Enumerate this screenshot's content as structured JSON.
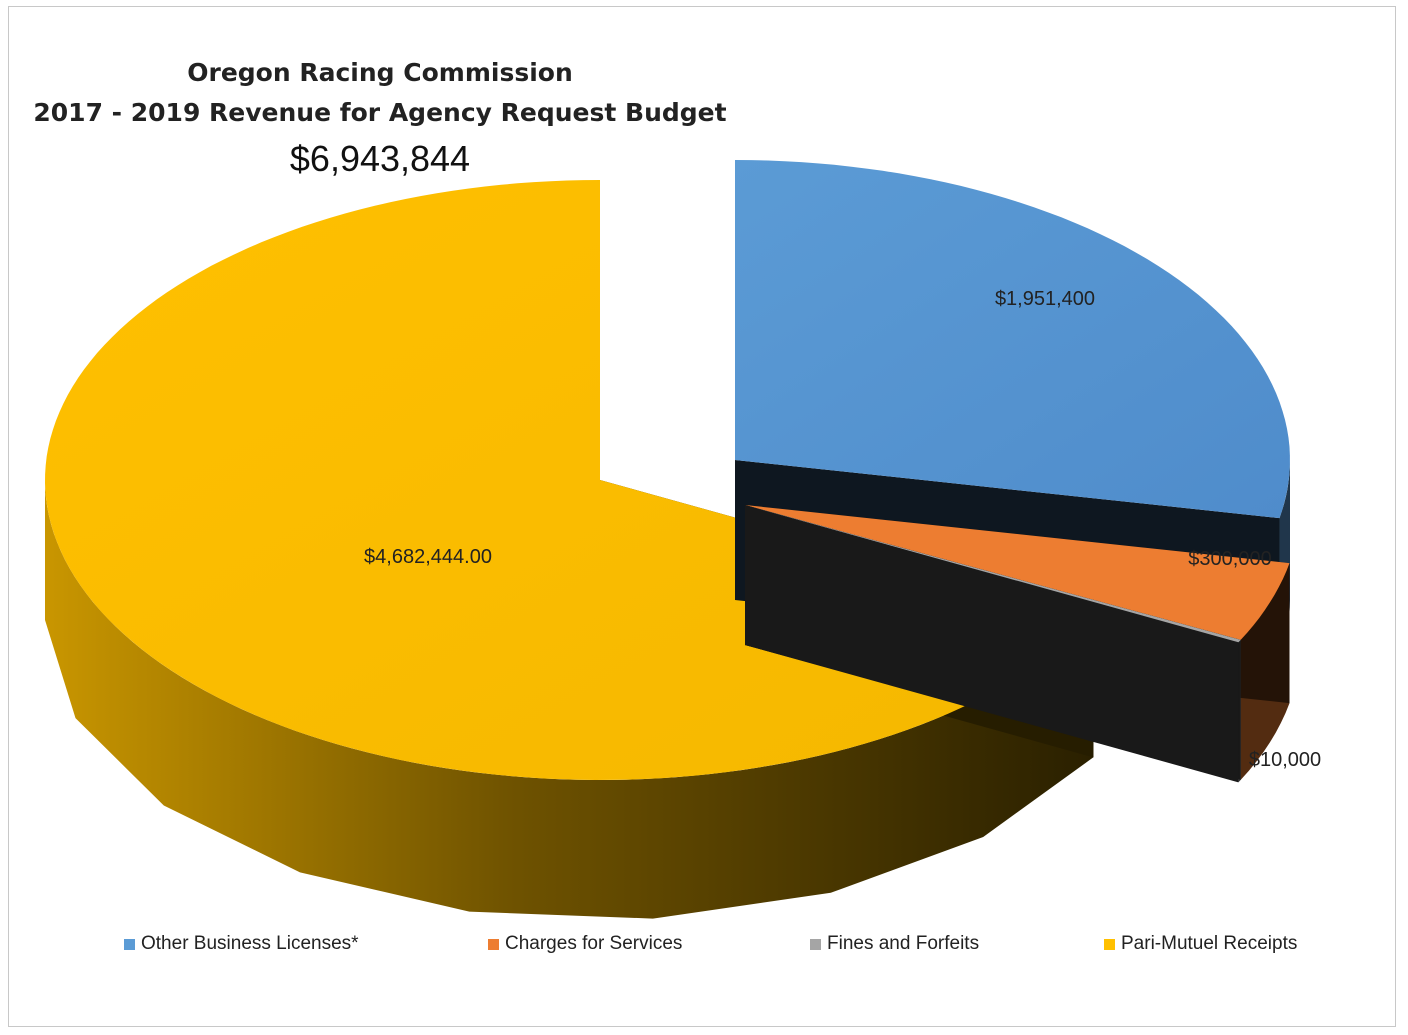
{
  "chart_data": {
    "type": "pie",
    "title": "Oregon Racing Commission",
    "subtitle": "2017 - 2019 Revenue for Agency Request Budget",
    "total_label": "$6,943,844",
    "slices": [
      {
        "name": "Other Business Licenses*",
        "value": 1951400,
        "label": "$1,951,400",
        "color": "#5b9bd5"
      },
      {
        "name": "Charges for Services",
        "value": 300000,
        "label": "$300,000",
        "color": "#ed7d31"
      },
      {
        "name": "Fines and Forfeits",
        "value": 10000,
        "label": "$10,000",
        "color": "#a5a5a5"
      },
      {
        "name": "Pari-Mutuel Receipts",
        "value": 4682444,
        "label": "$4,682,444.00",
        "color": "#ffc000"
      }
    ],
    "legend_position": "bottom",
    "style": "3d-exploded"
  }
}
